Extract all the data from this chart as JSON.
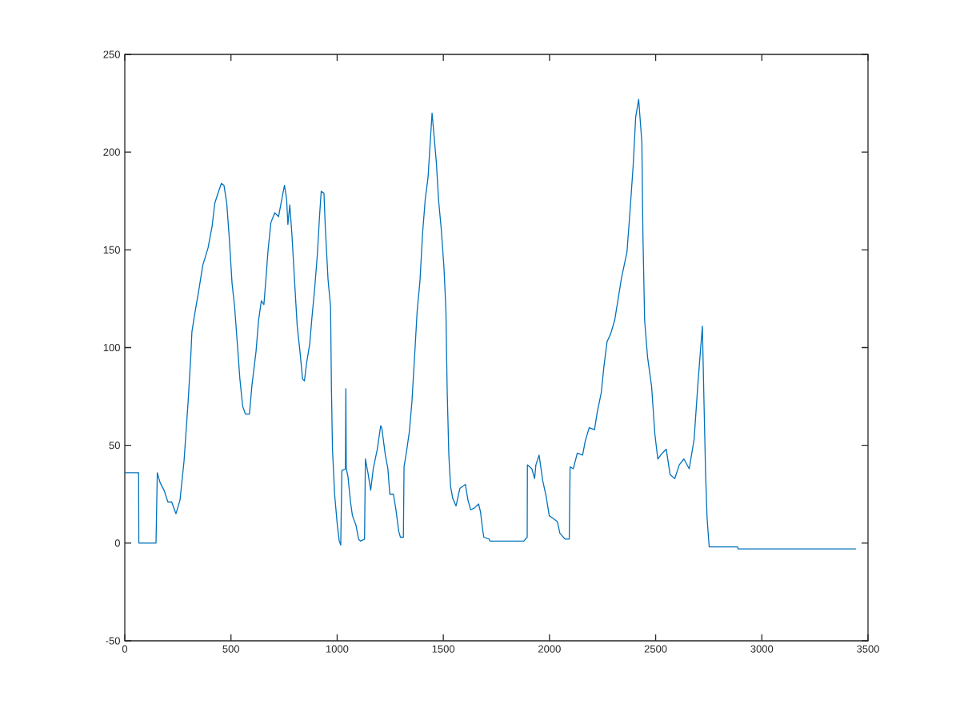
{
  "chart_data": {
    "type": "line",
    "color": "#0072bd",
    "xlim": [
      0,
      3500
    ],
    "ylim": [
      -50,
      250
    ],
    "xticks": [
      0,
      500,
      1000,
      1500,
      2000,
      2500,
      3000,
      3500
    ],
    "yticks": [
      -50,
      0,
      50,
      100,
      150,
      200,
      250
    ],
    "grid": false,
    "x": [
      0,
      65,
      66,
      147,
      153,
      166,
      185,
      203,
      221,
      241,
      260,
      279,
      298,
      310,
      316,
      329,
      348,
      367,
      392,
      411,
      424,
      442,
      455,
      467,
      480,
      492,
      505,
      517,
      530,
      542,
      555,
      568,
      587,
      599,
      618,
      630,
      643,
      655,
      666,
      674,
      688,
      706,
      724,
      743,
      752,
      762,
      768,
      777,
      787,
      800,
      812,
      825,
      837,
      846,
      856,
      871,
      881,
      894,
      907,
      917,
      925,
      938,
      944,
      957,
      969,
      973,
      978,
      988,
      1001,
      1010,
      1017,
      1022,
      1039,
      1041,
      1043,
      1051,
      1063,
      1072,
      1089,
      1101,
      1110,
      1129,
      1133,
      1145,
      1158,
      1170,
      1189,
      1205,
      1210,
      1227,
      1239,
      1248,
      1265,
      1277,
      1290,
      1298,
      1312,
      1315,
      1327,
      1340,
      1352,
      1365,
      1377,
      1390,
      1402,
      1415,
      1428,
      1447,
      1467,
      1478,
      1490,
      1503,
      1512,
      1518,
      1526,
      1534,
      1544,
      1560,
      1578,
      1604,
      1616,
      1629,
      1647,
      1666,
      1675,
      1685,
      1691,
      1716,
      1720,
      1879,
      1895,
      1896,
      1917,
      1930,
      1936,
      1951,
      1968,
      1984,
      1999,
      2012,
      2037,
      2049,
      2074,
      2093,
      2097,
      2112,
      2131,
      2156,
      2168,
      2187,
      2212,
      2225,
      2244,
      2256,
      2271,
      2288,
      2307,
      2325,
      2338,
      2365,
      2380,
      2394,
      2406,
      2420,
      2435,
      2440,
      2448,
      2462,
      2481,
      2496,
      2510,
      2531,
      2550,
      2568,
      2590,
      2611,
      2633,
      2658,
      2681,
      2698,
      2712,
      2720,
      2727,
      2735,
      2742,
      2752,
      2771,
      2886,
      2888,
      3443
    ],
    "values": [
      36,
      36,
      0,
      0,
      36,
      31,
      27,
      21,
      21,
      15,
      22,
      42,
      72,
      94,
      108,
      117,
      129,
      142,
      151,
      162,
      174,
      180,
      184,
      183,
      174,
      156,
      133,
      121,
      102,
      84,
      70,
      66,
      66,
      81,
      98,
      114,
      124,
      122,
      137,
      149,
      164,
      169,
      167,
      178,
      183,
      176,
      163,
      173,
      158,
      133,
      111,
      98,
      84,
      83,
      92,
      102,
      115,
      130,
      148,
      167,
      180,
      179,
      162,
      135,
      121,
      80,
      48,
      25,
      9,
      1,
      -1,
      37,
      38,
      79,
      38,
      34,
      21,
      14,
      9,
      2,
      1,
      2,
      43,
      36,
      27,
      38,
      48,
      60,
      59,
      45,
      38,
      25,
      25,
      17,
      6,
      3,
      3,
      39,
      47,
      57,
      72,
      96,
      119,
      134,
      158,
      176,
      187,
      220,
      195,
      175,
      161,
      141,
      120,
      79,
      45,
      29,
      23,
      19,
      28,
      30,
      22,
      17,
      18,
      20,
      16,
      7,
      3,
      2,
      1,
      1,
      3,
      40,
      38,
      33,
      40,
      45,
      32,
      24,
      14,
      13,
      11,
      5,
      2,
      2,
      39,
      38,
      46,
      45,
      52,
      59,
      58,
      67,
      77,
      90,
      103,
      107,
      114,
      126,
      135,
      149,
      171,
      193,
      218,
      227,
      205,
      158,
      114,
      95,
      80,
      56,
      43,
      46,
      48,
      35,
      33,
      40,
      43,
      38,
      53,
      80,
      100,
      111,
      75,
      36,
      13,
      -2,
      -2,
      -2,
      -3,
      -3
    ]
  }
}
